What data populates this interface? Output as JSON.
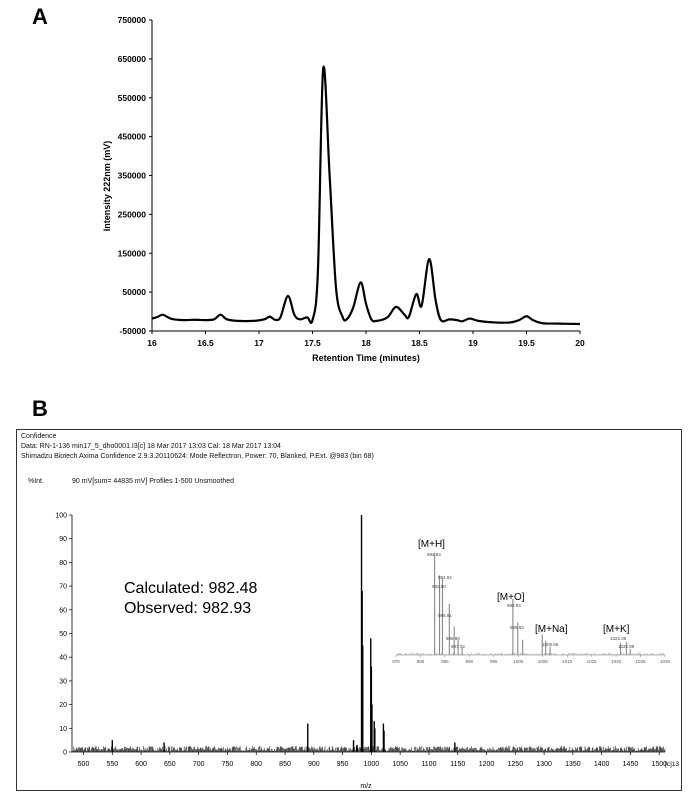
{
  "panels": {
    "a": "A",
    "b": "B"
  },
  "chart_data": [
    {
      "type": "line",
      "title": "",
      "xlabel": "Retention Time (minutes)",
      "ylabel": "Intensity 222nm (mV)",
      "xlim": [
        16,
        20
      ],
      "ylim": [
        -50000,
        750000
      ],
      "x_ticks": [
        "16",
        "16.5",
        "17",
        "17.5",
        "18",
        "18.5",
        "19",
        "19.5",
        "20"
      ],
      "y_ticks": [
        "-50000",
        "50000",
        "150000",
        "250000",
        "350000",
        "450000",
        "550000",
        "650000",
        "750000"
      ],
      "grid": false,
      "series": [
        {
          "color": "#000000",
          "points": [
            [
              16.0,
              -18000
            ],
            [
              16.05,
              -14000
            ],
            [
              16.1,
              -8000
            ],
            [
              16.15,
              -15000
            ],
            [
              16.2,
              -20000
            ],
            [
              16.3,
              -22000
            ],
            [
              16.4,
              -21000
            ],
            [
              16.5,
              -22000
            ],
            [
              16.58,
              -20000
            ],
            [
              16.64,
              -8000
            ],
            [
              16.7,
              -20000
            ],
            [
              16.8,
              -24000
            ],
            [
              16.95,
              -24000
            ],
            [
              17.05,
              -20000
            ],
            [
              17.1,
              -13000
            ],
            [
              17.15,
              -21000
            ],
            [
              17.2,
              -15000
            ],
            [
              17.27,
              40000
            ],
            [
              17.33,
              -8000
            ],
            [
              17.38,
              -20000
            ],
            [
              17.45,
              -15000
            ],
            [
              17.5,
              -22000
            ],
            [
              17.55,
              100000
            ],
            [
              17.6,
              625000
            ],
            [
              17.66,
              350000
            ],
            [
              17.72,
              60000
            ],
            [
              17.78,
              -13000
            ],
            [
              17.82,
              -20000
            ],
            [
              17.88,
              10000
            ],
            [
              17.95,
              75000
            ],
            [
              18.0,
              20000
            ],
            [
              18.05,
              -20000
            ],
            [
              18.1,
              -24000
            ],
            [
              18.2,
              -15000
            ],
            [
              18.28,
              12000
            ],
            [
              18.36,
              -8000
            ],
            [
              18.4,
              -14000
            ],
            [
              18.47,
              45000
            ],
            [
              18.52,
              15000
            ],
            [
              18.59,
              135000
            ],
            [
              18.65,
              30000
            ],
            [
              18.7,
              -22000
            ],
            [
              18.78,
              -20000
            ],
            [
              18.85,
              -22000
            ],
            [
              18.9,
              -25000
            ],
            [
              18.97,
              -18000
            ],
            [
              19.05,
              -24000
            ],
            [
              19.2,
              -28000
            ],
            [
              19.35,
              -28000
            ],
            [
              19.43,
              -22000
            ],
            [
              19.5,
              -12000
            ],
            [
              19.56,
              -22000
            ],
            [
              19.65,
              -30000
            ],
            [
              19.8,
              -31000
            ],
            [
              20.0,
              -32000
            ]
          ]
        }
      ]
    },
    {
      "type": "bar",
      "title": "",
      "xlabel": "m/z",
      "ylabel": "%Int.",
      "xlim": [
        480,
        1510
      ],
      "ylim": [
        0,
        100
      ],
      "x_ticks": [
        "500",
        "550",
        "600",
        "650",
        "700",
        "750",
        "800",
        "850",
        "900",
        "950",
        "1000",
        "1050",
        "1100",
        "1150",
        "1200",
        "1250",
        "1300",
        "1350",
        "1400",
        "1450",
        "1500"
      ],
      "y_ticks": [
        "0",
        "10",
        "20",
        "30",
        "40",
        "50",
        "60",
        "70",
        "80",
        "90",
        "100"
      ],
      "x_axis_suffix": "[c]13",
      "header": {
        "line1": "Confidence",
        "line2": "Data: RN-1-136 min17_5_dho0001.I3[c] 18 Mar 2017 13:03 Cal: 18 Mar 2017 13:04",
        "line3": "Shimadzu Biotech Axima Confidence 2.9.3.20110624: Mode Reflectron, Power: 70, Blanked, P.Ext. @983 (bin 68)",
        "line4": "90 mV[sum= 44835 mV] Profiles 1-500 Unsmoothed",
        "ylabel": "%Int."
      },
      "annotations": {
        "calculated": "Calculated: 982.48",
        "observed": "Observed: 982.93"
      },
      "peaks": [
        [
          982.9,
          100
        ],
        [
          984.0,
          68
        ],
        [
          985.0,
          45
        ],
        [
          998.9,
          48
        ],
        [
          1000.0,
          36
        ],
        [
          1001.0,
          20
        ],
        [
          1004.9,
          13
        ],
        [
          1006.0,
          10
        ],
        [
          1020.9,
          12
        ],
        [
          1022.0,
          9
        ],
        [
          889.5,
          12
        ],
        [
          550.0,
          5
        ],
        [
          640.0,
          4
        ],
        [
          1145.0,
          4
        ],
        [
          969.0,
          5
        ],
        [
          975.0,
          3
        ]
      ],
      "inset": {
        "xlim": [
          975,
          1030
        ],
        "x_ticks": [
          "975",
          "980",
          "985",
          "990",
          "995",
          "1000",
          "1005",
          "1010",
          "1015",
          "1020",
          "1025",
          "1030"
        ],
        "labels": [
          {
            "text": "[M+H]",
            "sup": "+"
          },
          {
            "text": "[M+O]",
            "sup": "+"
          },
          {
            "text": "[M+Na]",
            "sup": "+"
          },
          {
            "text": "[M+K]",
            "sup": "+"
          }
        ],
        "peak_labels": [
          "982.93",
          "984.04",
          "983.90",
          "985.91",
          "986.90",
          "987.73",
          "998.93",
          "999.93",
          "1005.65",
          "1022.09",
          "1022.89"
        ],
        "peaks": [
          [
            982.9,
            100
          ],
          [
            983.9,
            78
          ],
          [
            984.5,
            75
          ],
          [
            985.9,
            50
          ],
          [
            986.9,
            28
          ],
          [
            987.7,
            15
          ],
          [
            988.5,
            8
          ],
          [
            998.9,
            55
          ],
          [
            999.9,
            32
          ],
          [
            1000.9,
            15
          ],
          [
            1004.9,
            20
          ],
          [
            1005.6,
            14
          ],
          [
            1006.5,
            8
          ],
          [
            1020.9,
            12
          ],
          [
            1022.1,
            13
          ],
          [
            1022.9,
            6
          ]
        ]
      }
    }
  ]
}
